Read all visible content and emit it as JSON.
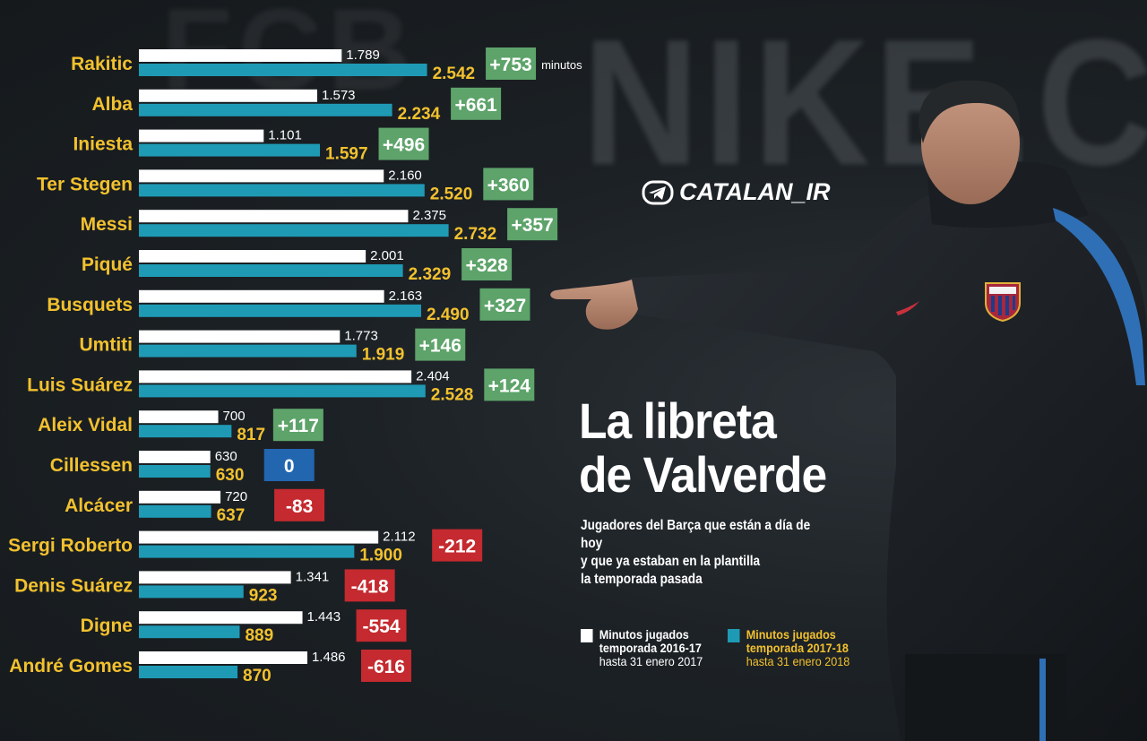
{
  "watermark": {
    "text": "CATALAN_IR"
  },
  "title": {
    "line1": "La libreta",
    "line2": "de Valverde"
  },
  "subtitle": {
    "line1": "Jugadores del Barça que están a día de hoy",
    "line2": "y que ya estaban en la plantilla",
    "line3": "la temporada pasada"
  },
  "legend": {
    "white": {
      "line1": "Minutos jugados",
      "line2": "temporada 2016-17",
      "line3": "hasta 31 enero 2017"
    },
    "blue": {
      "line1": "Minutos jugados",
      "line2": "temporada 2017-18",
      "line3": "hasta 31 enero 2018"
    }
  },
  "background": {
    "wall_text_1": "NIKE.CO",
    "wall_text_2": "FCB"
  },
  "colors": {
    "bar_2016": "#ffffff",
    "bar_2017": "#1f9ab5",
    "player_name": "#f2c12e",
    "value_2016": "#ffffff",
    "value_2017": "#f2c12e",
    "diff_positive": "#5da36a",
    "diff_zero": "#2266b0",
    "diff_negative": "#c42a2f"
  },
  "chart_data": {
    "type": "bar",
    "orientation": "horizontal",
    "unit_label": "minutos",
    "categories": [
      "Rakitic",
      "Alba",
      "Iniesta",
      "Ter Stegen",
      "Messi",
      "Piqué",
      "Busquets",
      "Umtiti",
      "Luis Suárez",
      "Aleix Vidal",
      "Cillessen",
      "Alcácer",
      "Sergi Roberto",
      "Denis Suárez",
      "Digne",
      "André Gomes"
    ],
    "series": [
      {
        "name": "Minutos jugados temporada 2016-17 hasta 31 enero 2017",
        "values": [
          1789,
          1573,
          1101,
          2160,
          2375,
          2001,
          2163,
          1773,
          2404,
          700,
          630,
          720,
          2112,
          1341,
          1443,
          1486
        ],
        "labels": [
          "1.789",
          "1.573",
          "1.101",
          "2.160",
          "2.375",
          "2.001",
          "2.163",
          "1.773",
          "2.404",
          "700",
          "630",
          "720",
          "2.112",
          "1.341",
          "1.443",
          "1.486"
        ]
      },
      {
        "name": "Minutos jugados temporada 2017-18 hasta 31 enero 2018",
        "values": [
          2542,
          2234,
          1597,
          2520,
          2732,
          2329,
          2490,
          1919,
          2528,
          817,
          630,
          637,
          1900,
          923,
          889,
          870
        ],
        "labels": [
          "2.542",
          "2.234",
          "1.597",
          "2.520",
          "2.732",
          "2.329",
          "2.490",
          "1.919",
          "2.528",
          "817",
          "630",
          "637",
          "1.900",
          "923",
          "889",
          "870"
        ]
      }
    ],
    "differences": [
      753,
      661,
      496,
      360,
      357,
      328,
      327,
      146,
      124,
      117,
      0,
      -83,
      -212,
      -418,
      -554,
      -616
    ],
    "difference_labels": [
      "+753",
      "+661",
      "+496",
      "+360",
      "+357",
      "+328",
      "+327",
      "+146",
      "+124",
      "+117",
      "0",
      "-83",
      "-212",
      "-418",
      "-554",
      "-616"
    ],
    "xlim": [
      0,
      2800
    ],
    "grid": false
  }
}
